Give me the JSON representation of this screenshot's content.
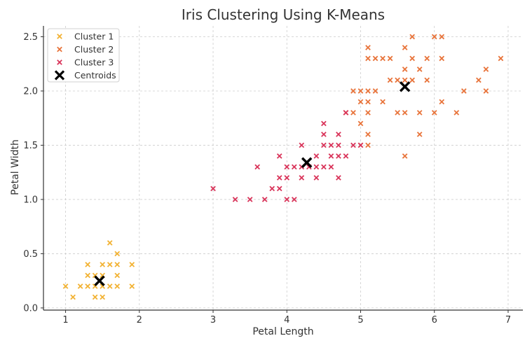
{
  "chart_data": {
    "type": "scatter",
    "title": "Iris Clustering Using K-Means",
    "xlabel": "Petal Length",
    "ylabel": "Petal Width",
    "xlim": [
      0.7,
      7.2
    ],
    "ylim": [
      -0.02,
      2.6
    ],
    "xticks": [
      1,
      2,
      3,
      4,
      5,
      6,
      7
    ],
    "yticks": [
      0.0,
      0.5,
      1.0,
      1.5,
      2.0,
      2.5
    ],
    "ytick_labels": [
      "0.0",
      "0.5",
      "1.0",
      "1.5",
      "2.0",
      "2.5"
    ],
    "grid": true,
    "legend_position": "top-left",
    "series": [
      {
        "name": "Cluster 1",
        "color": "#f2b233",
        "marker": "x",
        "points": [
          [
            1.0,
            0.2
          ],
          [
            1.1,
            0.1
          ],
          [
            1.2,
            0.2
          ],
          [
            1.3,
            0.2
          ],
          [
            1.3,
            0.3
          ],
          [
            1.3,
            0.4
          ],
          [
            1.4,
            0.1
          ],
          [
            1.4,
            0.2
          ],
          [
            1.4,
            0.3
          ],
          [
            1.5,
            0.1
          ],
          [
            1.5,
            0.2
          ],
          [
            1.5,
            0.3
          ],
          [
            1.5,
            0.4
          ],
          [
            1.6,
            0.2
          ],
          [
            1.6,
            0.4
          ],
          [
            1.6,
            0.6
          ],
          [
            1.7,
            0.2
          ],
          [
            1.7,
            0.3
          ],
          [
            1.7,
            0.4
          ],
          [
            1.7,
            0.5
          ],
          [
            1.9,
            0.2
          ],
          [
            1.9,
            0.4
          ]
        ]
      },
      {
        "name": "Cluster 2",
        "color": "#e8743b",
        "marker": "x",
        "points": [
          [
            4.8,
            1.8
          ],
          [
            4.9,
            1.8
          ],
          [
            4.9,
            2.0
          ],
          [
            5.0,
            1.5
          ],
          [
            5.0,
            1.7
          ],
          [
            5.0,
            1.9
          ],
          [
            5.0,
            2.0
          ],
          [
            5.1,
            1.5
          ],
          [
            5.1,
            1.6
          ],
          [
            5.1,
            1.8
          ],
          [
            5.1,
            1.9
          ],
          [
            5.1,
            2.0
          ],
          [
            5.1,
            2.3
          ],
          [
            5.1,
            2.4
          ],
          [
            5.2,
            2.0
          ],
          [
            5.2,
            2.3
          ],
          [
            5.3,
            1.9
          ],
          [
            5.3,
            2.3
          ],
          [
            5.4,
            2.1
          ],
          [
            5.4,
            2.3
          ],
          [
            5.5,
            1.8
          ],
          [
            5.5,
            2.1
          ],
          [
            5.6,
            1.4
          ],
          [
            5.6,
            1.8
          ],
          [
            5.6,
            2.1
          ],
          [
            5.6,
            2.2
          ],
          [
            5.6,
            2.4
          ],
          [
            5.7,
            2.1
          ],
          [
            5.7,
            2.3
          ],
          [
            5.7,
            2.5
          ],
          [
            5.8,
            1.6
          ],
          [
            5.8,
            1.8
          ],
          [
            5.8,
            2.2
          ],
          [
            5.9,
            2.1
          ],
          [
            5.9,
            2.3
          ],
          [
            6.0,
            1.8
          ],
          [
            6.0,
            2.5
          ],
          [
            6.1,
            1.9
          ],
          [
            6.1,
            2.3
          ],
          [
            6.1,
            2.5
          ],
          [
            6.3,
            1.8
          ],
          [
            6.4,
            2.0
          ],
          [
            6.6,
            2.1
          ],
          [
            6.7,
            2.0
          ],
          [
            6.7,
            2.2
          ],
          [
            6.9,
            2.3
          ]
        ]
      },
      {
        "name": "Cluster 3",
        "color": "#d9345a",
        "marker": "x",
        "points": [
          [
            3.0,
            1.1
          ],
          [
            3.3,
            1.0
          ],
          [
            3.5,
            1.0
          ],
          [
            3.6,
            1.3
          ],
          [
            3.7,
            1.0
          ],
          [
            3.8,
            1.1
          ],
          [
            3.9,
            1.1
          ],
          [
            3.9,
            1.2
          ],
          [
            3.9,
            1.4
          ],
          [
            4.0,
            1.0
          ],
          [
            4.0,
            1.2
          ],
          [
            4.0,
            1.3
          ],
          [
            4.1,
            1.0
          ],
          [
            4.1,
            1.3
          ],
          [
            4.2,
            1.2
          ],
          [
            4.2,
            1.3
          ],
          [
            4.2,
            1.5
          ],
          [
            4.3,
            1.3
          ],
          [
            4.4,
            1.2
          ],
          [
            4.4,
            1.3
          ],
          [
            4.4,
            1.4
          ],
          [
            4.5,
            1.3
          ],
          [
            4.5,
            1.5
          ],
          [
            4.5,
            1.6
          ],
          [
            4.5,
            1.7
          ],
          [
            4.6,
            1.3
          ],
          [
            4.6,
            1.4
          ],
          [
            4.6,
            1.5
          ],
          [
            4.7,
            1.2
          ],
          [
            4.7,
            1.4
          ],
          [
            4.7,
            1.5
          ],
          [
            4.7,
            1.6
          ],
          [
            4.8,
            1.4
          ],
          [
            4.8,
            1.8
          ],
          [
            4.9,
            1.5
          ],
          [
            5.0,
            1.5
          ]
        ]
      }
    ],
    "centroids": {
      "name": "Centroids",
      "color": "#000000",
      "marker": "X",
      "points": [
        [
          1.46,
          0.25
        ],
        [
          4.27,
          1.34
        ],
        [
          5.6,
          2.04
        ]
      ]
    }
  }
}
